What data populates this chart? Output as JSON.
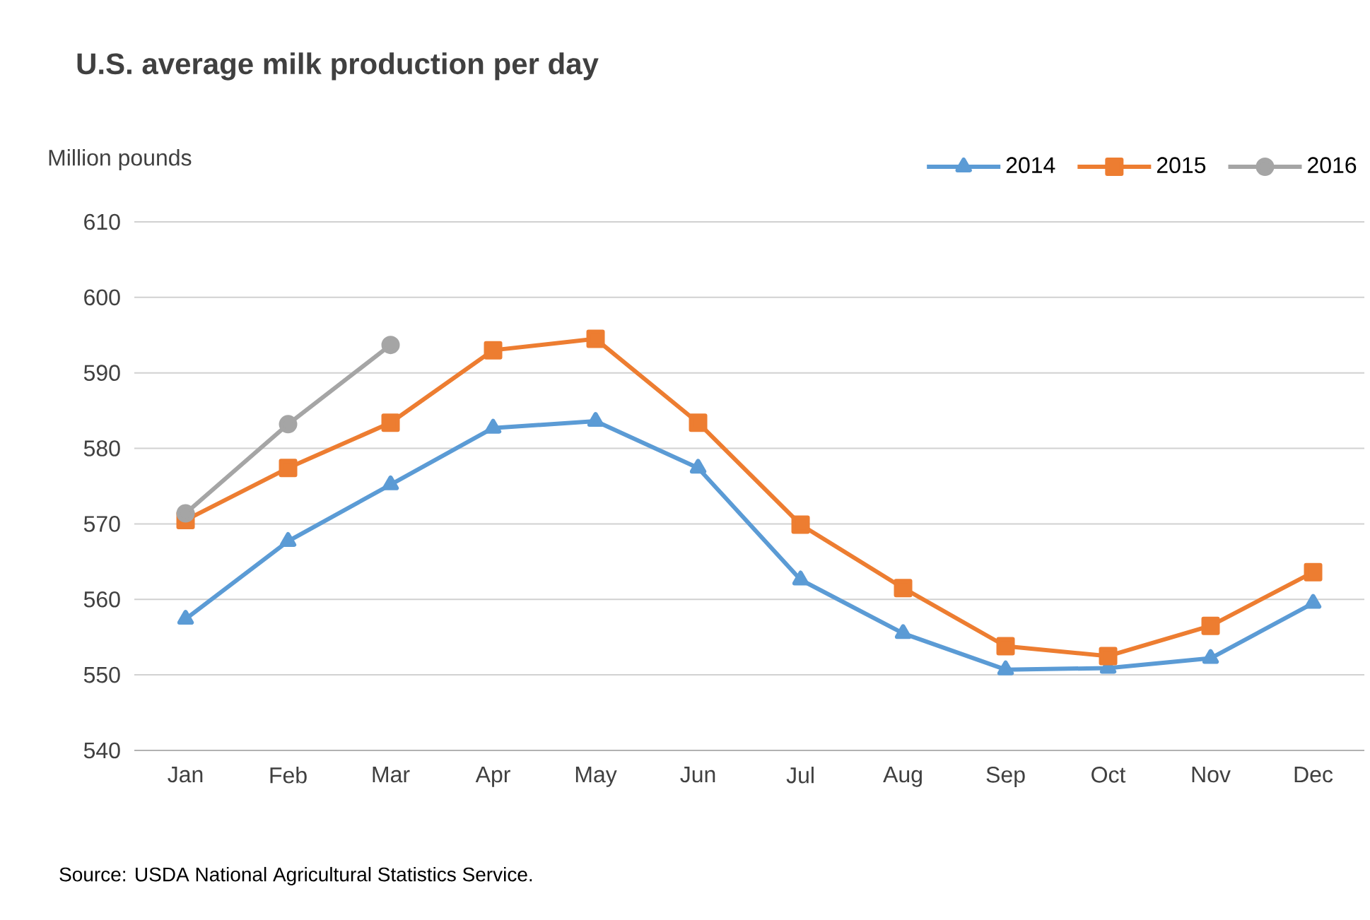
{
  "chart_data": {
    "type": "line",
    "title": "U.S. average milk production per day",
    "ylabel": "Million pounds",
    "categories": [
      "Jan",
      "Feb",
      "Mar",
      "Apr",
      "May",
      "Jun",
      "Jul",
      "Aug",
      "Sep",
      "Oct",
      "Nov",
      "Dec"
    ],
    "series": [
      {
        "name": "2014",
        "color": "#5b9bd5",
        "marker": "triangle",
        "values": [
          557.4,
          567.7,
          575.2,
          582.7,
          583.6,
          577.4,
          562.6,
          555.5,
          550.7,
          550.9,
          552.2,
          559.5
        ]
      },
      {
        "name": "2015",
        "color": "#ed7d31",
        "marker": "square",
        "values": [
          570.5,
          577.4,
          583.4,
          593.0,
          594.5,
          583.4,
          569.9,
          561.5,
          553.8,
          552.5,
          556.5,
          563.6
        ]
      },
      {
        "name": "2016",
        "color": "#a5a5a5",
        "marker": "circle",
        "values": [
          571.4,
          583.2,
          593.7,
          null,
          null,
          null,
          null,
          null,
          null,
          null,
          null,
          null
        ]
      }
    ],
    "ylim": [
      540,
      610
    ],
    "yticks": [
      540,
      550,
      560,
      570,
      580,
      590,
      600,
      610
    ],
    "grid": "y",
    "legend": "top right",
    "annotations": [
      "Source: USDA National Agricultural Statistics Service."
    ]
  }
}
